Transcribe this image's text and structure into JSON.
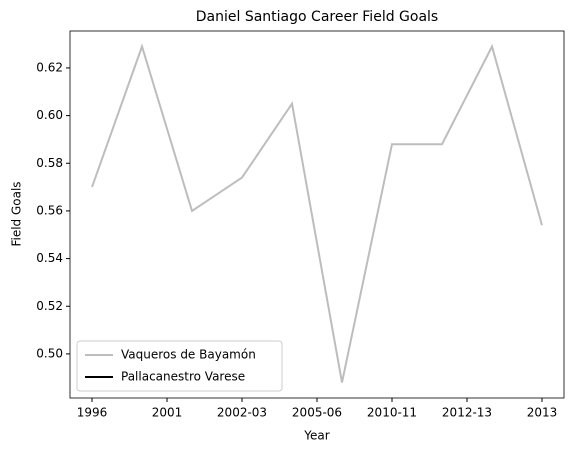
{
  "chart_data": {
    "type": "line",
    "title": "Daniel Santiago Career Field Goals",
    "x_label": "Year",
    "y_label": "Field Goals",
    "x": [
      0,
      1,
      2,
      3,
      4,
      5,
      6,
      7,
      8,
      9
    ],
    "series": [
      {
        "name": "Vaqueros de Bayamón",
        "color": "#bdbdbd",
        "values": [
          0.57,
          0.629,
          0.56,
          0.574,
          0.605,
          0.488,
          0.588,
          0.588,
          0.629,
          0.554
        ]
      },
      {
        "name": "Pallacanestro Varese",
        "color": "#000000",
        "values": [
          null,
          null,
          null,
          null,
          null,
          null,
          null,
          null,
          null,
          null
        ]
      }
    ],
    "xlim": [
      -0.44,
      9.44
    ],
    "xticks": [
      {
        "value": 0,
        "label": "1996"
      },
      {
        "value": 1.5,
        "label": "2001"
      },
      {
        "value": 3,
        "label": "2002-03"
      },
      {
        "value": 4.5,
        "label": "2005-06"
      },
      {
        "value": 6,
        "label": "2010-11"
      },
      {
        "value": 7.5,
        "label": "2012-13"
      },
      {
        "value": 9,
        "label": "2013"
      }
    ],
    "ylim": [
      0.4815,
      0.6355
    ],
    "yticks": [
      {
        "value": 0.5,
        "label": "0.50"
      },
      {
        "value": 0.52,
        "label": "0.52"
      },
      {
        "value": 0.54,
        "label": "0.54"
      },
      {
        "value": 0.56,
        "label": "0.56"
      },
      {
        "value": 0.58,
        "label": "0.58"
      },
      {
        "value": 0.6,
        "label": "0.60"
      },
      {
        "value": 0.62,
        "label": "0.62"
      }
    ],
    "grid": false,
    "legend": "lower left"
  }
}
